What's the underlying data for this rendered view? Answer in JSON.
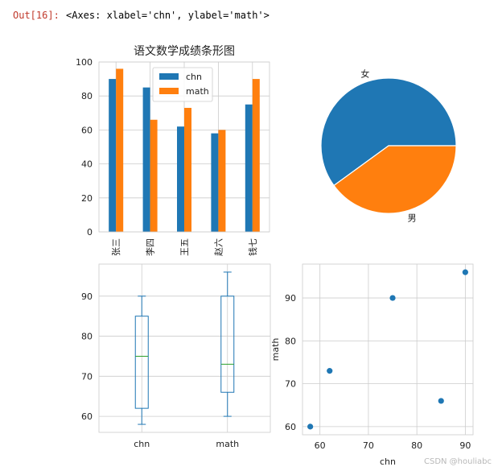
{
  "output": {
    "prompt": "Out[16]:",
    "text": "<Axes: xlabel='chn', ylabel='math'>"
  },
  "watermark": "CSDN @houliabc",
  "colors": {
    "blue": "#1f77b4",
    "orange": "#ff7f0e",
    "green": "#2ca02c"
  },
  "chart_data": [
    {
      "type": "bar",
      "title": "语文数学成绩条形图",
      "categories": [
        "张三",
        "李四",
        "王五",
        "赵六",
        "钱七"
      ],
      "series": [
        {
          "name": "chn",
          "values": [
            90,
            85,
            62,
            58,
            75
          ]
        },
        {
          "name": "math",
          "values": [
            96,
            66,
            73,
            60,
            90
          ]
        }
      ],
      "ylim": [
        0,
        100
      ],
      "yticks": [
        0,
        20,
        40,
        60,
        80,
        100
      ],
      "grid": true,
      "legend": "top-center"
    },
    {
      "type": "pie",
      "labels": [
        "女",
        "男"
      ],
      "values": [
        3,
        2
      ]
    },
    {
      "type": "box",
      "categories": [
        "chn",
        "math"
      ],
      "series": [
        {
          "name": "chn",
          "values": [
            90,
            85,
            62,
            58,
            75
          ]
        },
        {
          "name": "math",
          "values": [
            96,
            66,
            73,
            60,
            90
          ]
        }
      ],
      "ylim": [
        56,
        98
      ],
      "yticks": [
        60,
        70,
        80,
        90
      ],
      "grid": true
    },
    {
      "type": "scatter",
      "xlabel": "chn",
      "ylabel": "math",
      "x": [
        90,
        85,
        62,
        58,
        75
      ],
      "y": [
        96,
        66,
        73,
        60,
        90
      ],
      "xlim": [
        56.4,
        91.6
      ],
      "ylim": [
        58.1,
        97.9
      ],
      "xticks": [
        60,
        70,
        80,
        90
      ],
      "yticks": [
        60,
        70,
        80,
        90
      ],
      "grid": true
    }
  ]
}
